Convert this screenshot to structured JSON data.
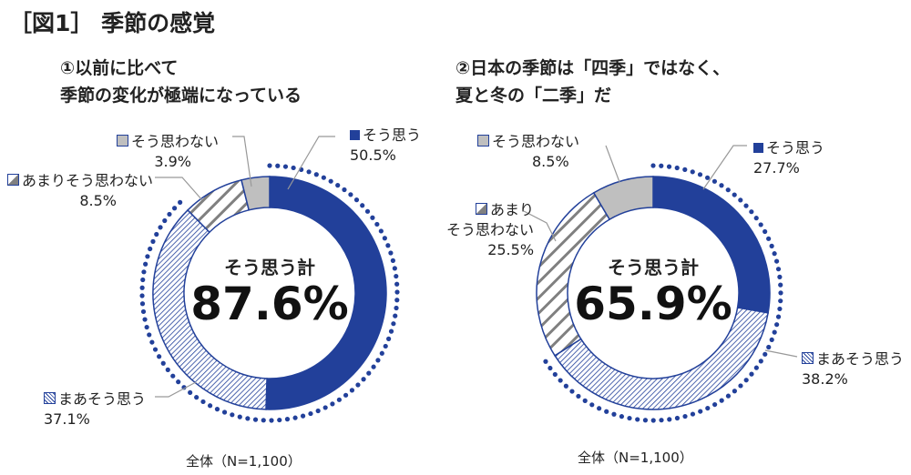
{
  "title": "［図1］ 季節の感覚",
  "chart_data": [
    {
      "type": "pie",
      "subtitle_lines": [
        "①以前に比べて",
        "季節の変化が極端になっている"
      ],
      "categories": [
        "そう思う",
        "まあそう思う",
        "あまりそう思わない",
        "そう思わない"
      ],
      "values": [
        50.5,
        37.1,
        8.5,
        3.9
      ],
      "labels": [
        "50.5%",
        "37.1%",
        "8.5%",
        "3.9%"
      ],
      "center_label": "そう思う計",
      "center_value": "87.6%",
      "footnote": "全体（N=1,100）"
    },
    {
      "type": "pie",
      "subtitle_lines": [
        "②日本の季節は「四季」ではなく、",
        "夏と冬の「二季」だ"
      ],
      "categories": [
        "そう思う",
        "まあそう思う",
        "あまりそう思わない",
        "そう思わない"
      ],
      "values": [
        27.7,
        38.2,
        25.5,
        8.5
      ],
      "labels": [
        "27.7%",
        "38.2%",
        "25.5%",
        "8.5%"
      ],
      "center_label": "そう思う計",
      "center_value": "65.9%",
      "footnote": "全体（N=1,100）"
    }
  ],
  "right_label_amari_lines": [
    "あまり",
    "そう思わない"
  ],
  "colors": {
    "blue": "#22409a",
    "gray": "#bfbfbf",
    "stripe": "#808080"
  }
}
